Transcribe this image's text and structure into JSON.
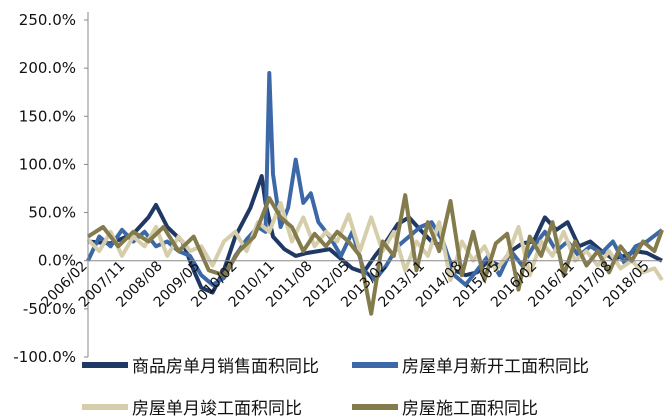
{
  "chart_data": {
    "type": "line",
    "title": "",
    "xlabel": "",
    "ylabel": "",
    "ylim": [
      -100,
      250
    ],
    "y_ticks": [
      -100,
      -50,
      0,
      50,
      100,
      150,
      200,
      250
    ],
    "y_tick_labels": [
      "-100.0%",
      "-50.0%",
      "0.0%",
      "50.0%",
      "100.0%",
      "150.0%",
      "200.0%",
      "250.0%"
    ],
    "x_tick_labels": [
      "2006/02",
      "2007/11",
      "2008/08",
      "2009/05",
      "2010/02",
      "2010/11",
      "2011/08",
      "2012/05",
      "2013/02",
      "2013/11",
      "2014/08",
      "2015/05",
      "2016/02",
      "2016/11",
      "2017/08",
      "2018/05"
    ],
    "x_start": "2006-02",
    "x_end": "2018-10",
    "legend_position": "bottom",
    "series": [
      {
        "name": "商品房单月销售面积同比",
        "color": "#1f3864",
        "points": [
          [
            "2006-02",
            20
          ],
          [
            "2006-08",
            18
          ],
          [
            "2007-02",
            28
          ],
          [
            "2007-06",
            45
          ],
          [
            "2007-08",
            58
          ],
          [
            "2007-11",
            35
          ],
          [
            "2008-03",
            20
          ],
          [
            "2008-06",
            -10
          ],
          [
            "2008-08",
            -28
          ],
          [
            "2008-11",
            -33
          ],
          [
            "2009-02",
            -10
          ],
          [
            "2009-05",
            25
          ],
          [
            "2009-09",
            55
          ],
          [
            "2009-12",
            88
          ],
          [
            "2010-01",
            60
          ],
          [
            "2010-03",
            25
          ],
          [
            "2010-06",
            12
          ],
          [
            "2010-09",
            5
          ],
          [
            "2010-12",
            8
          ],
          [
            "2011-03",
            10
          ],
          [
            "2011-06",
            12
          ],
          [
            "2011-09",
            2
          ],
          [
            "2011-12",
            -8
          ],
          [
            "2012-03",
            -12
          ],
          [
            "2012-06",
            5
          ],
          [
            "2012-09",
            20
          ],
          [
            "2012-12",
            38
          ],
          [
            "2013-03",
            45
          ],
          [
            "2013-06",
            32
          ],
          [
            "2013-09",
            20
          ],
          [
            "2013-12",
            15
          ],
          [
            "2014-03",
            -10
          ],
          [
            "2014-06",
            -15
          ],
          [
            "2014-09",
            -12
          ],
          [
            "2014-12",
            0
          ],
          [
            "2015-03",
            -5
          ],
          [
            "2015-06",
            10
          ],
          [
            "2015-09",
            18
          ],
          [
            "2015-12",
            20
          ],
          [
            "2016-03",
            45
          ],
          [
            "2016-06",
            32
          ],
          [
            "2016-09",
            40
          ],
          [
            "2016-12",
            15
          ],
          [
            "2017-03",
            20
          ],
          [
            "2017-06",
            10
          ],
          [
            "2017-09",
            2
          ],
          [
            "2017-12",
            5
          ],
          [
            "2018-03",
            10
          ],
          [
            "2018-06",
            8
          ],
          [
            "2018-10",
            0
          ]
        ]
      },
      {
        "name": "房屋单月新开工面积同比",
        "color": "#3c68a8",
        "points": [
          [
            "2006-02",
            0
          ],
          [
            "2006-05",
            25
          ],
          [
            "2006-08",
            15
          ],
          [
            "2006-11",
            32
          ],
          [
            "2007-02",
            20
          ],
          [
            "2007-05",
            30
          ],
          [
            "2007-08",
            15
          ],
          [
            "2007-11",
            20
          ],
          [
            "2008-02",
            10
          ],
          [
            "2008-05",
            5
          ],
          [
            "2008-08",
            -15
          ],
          [
            "2008-11",
            -25
          ],
          [
            "2009-02",
            -18
          ],
          [
            "2009-05",
            5
          ],
          [
            "2009-08",
            22
          ],
          [
            "2009-11",
            35
          ],
          [
            "2010-01",
            30
          ],
          [
            "2010-02",
            195
          ],
          [
            "2010-03",
            90
          ],
          [
            "2010-05",
            35
          ],
          [
            "2010-07",
            55
          ],
          [
            "2010-09",
            105
          ],
          [
            "2010-11",
            60
          ],
          [
            "2011-01",
            70
          ],
          [
            "2011-03",
            40
          ],
          [
            "2011-06",
            25
          ],
          [
            "2011-09",
            5
          ],
          [
            "2011-12",
            30
          ],
          [
            "2012-03",
            -10
          ],
          [
            "2012-06",
            -20
          ],
          [
            "2012-09",
            -5
          ],
          [
            "2012-12",
            15
          ],
          [
            "2013-03",
            25
          ],
          [
            "2013-06",
            35
          ],
          [
            "2013-09",
            40
          ],
          [
            "2013-12",
            20
          ],
          [
            "2014-03",
            -15
          ],
          [
            "2014-06",
            -25
          ],
          [
            "2014-09",
            -10
          ],
          [
            "2014-12",
            5
          ],
          [
            "2015-03",
            -15
          ],
          [
            "2015-06",
            10
          ],
          [
            "2015-09",
            -5
          ],
          [
            "2015-12",
            15
          ],
          [
            "2016-03",
            30
          ],
          [
            "2016-06",
            10
          ],
          [
            "2016-09",
            20
          ],
          [
            "2016-12",
            5
          ],
          [
            "2017-03",
            15
          ],
          [
            "2017-06",
            8
          ],
          [
            "2017-09",
            20
          ],
          [
            "2017-12",
            -2
          ],
          [
            "2018-03",
            15
          ],
          [
            "2018-06",
            20
          ],
          [
            "2018-10",
            32
          ]
        ]
      },
      {
        "name": "房屋单月竣工面积同比",
        "color": "#d6ceab",
        "points": [
          [
            "2006-02",
            22
          ],
          [
            "2006-05",
            10
          ],
          [
            "2006-08",
            30
          ],
          [
            "2006-11",
            5
          ],
          [
            "2007-02",
            25
          ],
          [
            "2007-05",
            15
          ],
          [
            "2007-08",
            35
          ],
          [
            "2007-11",
            5
          ],
          [
            "2008-02",
            25
          ],
          [
            "2008-05",
            10
          ],
          [
            "2008-08",
            15
          ],
          [
            "2008-11",
            -5
          ],
          [
            "2009-02",
            20
          ],
          [
            "2009-05",
            30
          ],
          [
            "2009-08",
            10
          ],
          [
            "2009-11",
            40
          ],
          [
            "2010-02",
            30
          ],
          [
            "2010-05",
            60
          ],
          [
            "2010-08",
            20
          ],
          [
            "2010-11",
            45
          ],
          [
            "2011-02",
            15
          ],
          [
            "2011-05",
            30
          ],
          [
            "2011-08",
            20
          ],
          [
            "2011-11",
            48
          ],
          [
            "2012-02",
            10
          ],
          [
            "2012-05",
            45
          ],
          [
            "2012-08",
            10
          ],
          [
            "2012-11",
            30
          ],
          [
            "2013-02",
            -10
          ],
          [
            "2013-05",
            20
          ],
          [
            "2013-08",
            5
          ],
          [
            "2013-11",
            40
          ],
          [
            "2014-02",
            -20
          ],
          [
            "2014-05",
            20
          ],
          [
            "2014-08",
            0
          ],
          [
            "2014-11",
            15
          ],
          [
            "2015-02",
            -10
          ],
          [
            "2015-05",
            5
          ],
          [
            "2015-08",
            35
          ],
          [
            "2015-11",
            -15
          ],
          [
            "2016-02",
            20
          ],
          [
            "2016-05",
            5
          ],
          [
            "2016-08",
            30
          ],
          [
            "2016-11",
            0
          ],
          [
            "2017-02",
            10
          ],
          [
            "2017-05",
            -5
          ],
          [
            "2017-08",
            10
          ],
          [
            "2017-11",
            -8
          ],
          [
            "2018-02",
            0
          ],
          [
            "2018-05",
            -12
          ],
          [
            "2018-08",
            -8
          ],
          [
            "2018-10",
            -20
          ]
        ]
      },
      {
        "name": "房屋施工面积同比",
        "color": "#847b4c",
        "points": [
          [
            "2006-02",
            25
          ],
          [
            "2006-06",
            35
          ],
          [
            "2006-10",
            15
          ],
          [
            "2007-02",
            30
          ],
          [
            "2007-06",
            20
          ],
          [
            "2007-10",
            35
          ],
          [
            "2008-02",
            10
          ],
          [
            "2008-06",
            25
          ],
          [
            "2008-10",
            -10
          ],
          [
            "2009-02",
            -15
          ],
          [
            "2009-06",
            10
          ],
          [
            "2009-10",
            25
          ],
          [
            "2010-02",
            65
          ],
          [
            "2010-05",
            45
          ],
          [
            "2010-08",
            35
          ],
          [
            "2010-11",
            10
          ],
          [
            "2011-02",
            28
          ],
          [
            "2011-05",
            15
          ],
          [
            "2011-08",
            30
          ],
          [
            "2011-11",
            20
          ],
          [
            "2012-02",
            5
          ],
          [
            "2012-05",
            -55
          ],
          [
            "2012-08",
            20
          ],
          [
            "2012-11",
            5
          ],
          [
            "2013-02",
            68
          ],
          [
            "2013-05",
            -10
          ],
          [
            "2013-08",
            40
          ],
          [
            "2013-11",
            10
          ],
          [
            "2014-02",
            62
          ],
          [
            "2014-05",
            -15
          ],
          [
            "2014-08",
            30
          ],
          [
            "2014-11",
            -20
          ],
          [
            "2015-02",
            18
          ],
          [
            "2015-05",
            28
          ],
          [
            "2015-08",
            -30
          ],
          [
            "2015-11",
            25
          ],
          [
            "2016-02",
            5
          ],
          [
            "2016-05",
            40
          ],
          [
            "2016-08",
            -15
          ],
          [
            "2016-11",
            20
          ],
          [
            "2017-02",
            -5
          ],
          [
            "2017-05",
            10
          ],
          [
            "2017-08",
            -12
          ],
          [
            "2017-11",
            15
          ],
          [
            "2018-02",
            0
          ],
          [
            "2018-05",
            20
          ],
          [
            "2018-08",
            10
          ],
          [
            "2018-10",
            32
          ]
        ]
      }
    ]
  }
}
